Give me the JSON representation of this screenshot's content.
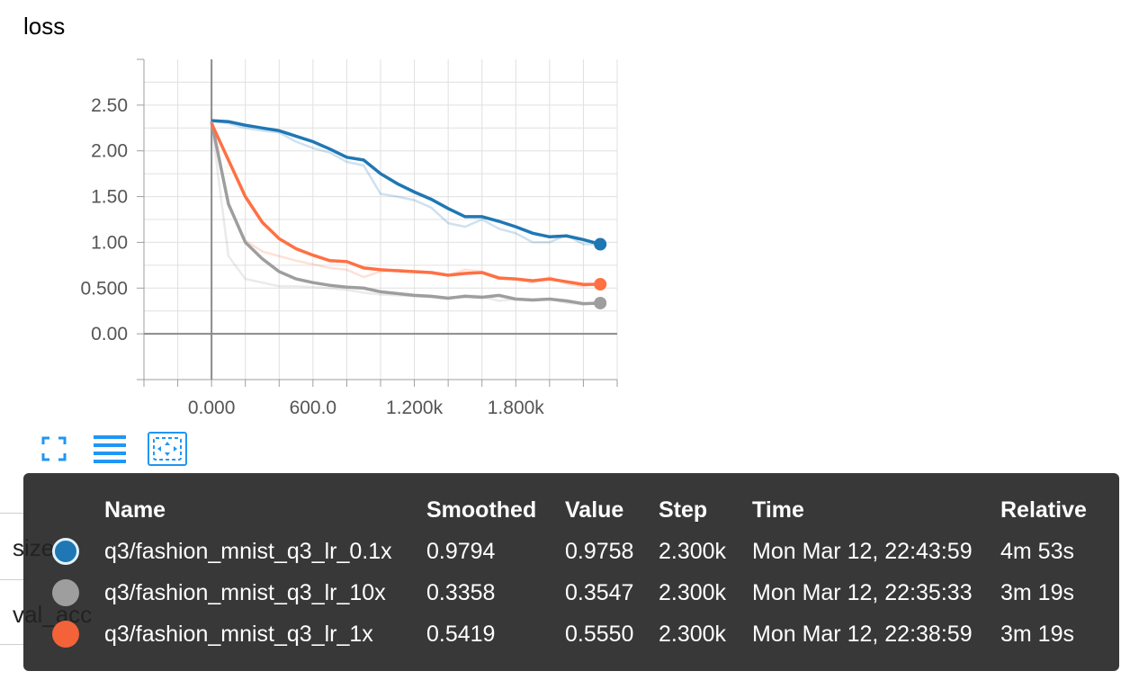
{
  "card": {
    "title": "loss"
  },
  "chart_data": {
    "type": "line",
    "title": "loss",
    "xlabel": "",
    "ylabel": "",
    "xlim": [
      -400,
      2400
    ],
    "ylim": [
      -0.5,
      3.0
    ],
    "x_ticks": [
      0,
      600,
      1200,
      1800
    ],
    "x_tick_labels": [
      "0.000",
      "600.0",
      "1.200k",
      "1.800k"
    ],
    "y_ticks": [
      0,
      0.5,
      1.0,
      1.5,
      2.0,
      2.5
    ],
    "y_tick_labels": [
      "0.00",
      "0.500",
      "1.00",
      "1.50",
      "2.00",
      "2.50"
    ],
    "grid": true,
    "x": [
      0,
      100,
      200,
      300,
      400,
      500,
      600,
      700,
      800,
      900,
      1000,
      1100,
      1200,
      1300,
      1400,
      1500,
      1600,
      1700,
      1800,
      1900,
      2000,
      2100,
      2200,
      2300
    ],
    "series": [
      {
        "name": "q3/fashion_mnist_q3_lr_0.1x",
        "color": "#1f77b4",
        "raw": [
          2.33,
          2.3,
          2.25,
          2.22,
          2.2,
          2.1,
          2.03,
          1.98,
          1.88,
          1.84,
          1.53,
          1.5,
          1.46,
          1.38,
          1.21,
          1.17,
          1.25,
          1.15,
          1.1,
          1.0,
          1.0,
          1.08,
          0.98,
          0.98
        ],
        "smoothed": [
          2.33,
          2.32,
          2.28,
          2.25,
          2.22,
          2.16,
          2.1,
          2.02,
          1.93,
          1.9,
          1.75,
          1.64,
          1.55,
          1.47,
          1.37,
          1.28,
          1.28,
          1.23,
          1.17,
          1.1,
          1.06,
          1.07,
          1.03,
          0.9794
        ]
      },
      {
        "name": "q3/fashion_mnist_q3_lr_10x",
        "color": "#9e9e9e",
        "raw": [
          2.3,
          0.85,
          0.6,
          0.56,
          0.52,
          0.52,
          0.51,
          0.5,
          0.48,
          0.45,
          0.43,
          0.42,
          0.41,
          0.4,
          0.38,
          0.42,
          0.41,
          0.36,
          0.38,
          0.36,
          0.38,
          0.34,
          0.32,
          0.3547
        ],
        "smoothed": [
          2.32,
          1.42,
          1.0,
          0.82,
          0.68,
          0.6,
          0.56,
          0.53,
          0.51,
          0.5,
          0.46,
          0.44,
          0.42,
          0.41,
          0.39,
          0.41,
          0.4,
          0.42,
          0.38,
          0.37,
          0.38,
          0.36,
          0.33,
          0.3358
        ]
      },
      {
        "name": "q3/fashion_mnist_q3_lr_1x",
        "color": "#ff7043",
        "raw": [
          2.3,
          1.4,
          1.02,
          0.9,
          0.85,
          0.8,
          0.76,
          0.72,
          0.7,
          0.62,
          0.68,
          0.7,
          0.68,
          0.66,
          0.64,
          0.7,
          0.68,
          0.62,
          0.6,
          0.56,
          0.62,
          0.55,
          0.52,
          0.555
        ],
        "smoothed": [
          2.3,
          1.9,
          1.5,
          1.22,
          1.04,
          0.93,
          0.86,
          0.8,
          0.79,
          0.72,
          0.7,
          0.69,
          0.68,
          0.67,
          0.64,
          0.66,
          0.67,
          0.61,
          0.6,
          0.58,
          0.6,
          0.57,
          0.54,
          0.5419
        ]
      }
    ]
  },
  "toolbar": {
    "icons": [
      "fullscreen-icon",
      "list-icon",
      "fit-domain-icon"
    ],
    "accent": "#2196f3"
  },
  "background_rows": {
    "size_label": "size",
    "val_acc_label": "val_acc"
  },
  "tooltip": {
    "headers": {
      "name": "Name",
      "smoothed": "Smoothed",
      "value": "Value",
      "step": "Step",
      "time": "Time",
      "relative": "Relative"
    },
    "rows": [
      {
        "color": "#1f77b4",
        "name": "q3/fashion_mnist_q3_lr_0.1x",
        "smoothed": "0.9794",
        "value": "0.9758",
        "step": "2.300k",
        "time": "Mon Mar 12, 22:43:59",
        "relative": "4m 53s"
      },
      {
        "color": "#9e9e9e",
        "name": "q3/fashion_mnist_q3_lr_10x",
        "smoothed": "0.3358",
        "value": "0.3547",
        "step": "2.300k",
        "time": "Mon Mar 12, 22:35:33",
        "relative": "3m 19s"
      },
      {
        "color": "#f4623a",
        "name": "q3/fashion_mnist_q3_lr_1x",
        "smoothed": "0.5419",
        "value": "0.5550",
        "step": "2.300k",
        "time": "Mon Mar 12, 22:38:59",
        "relative": "3m 19s"
      }
    ]
  }
}
